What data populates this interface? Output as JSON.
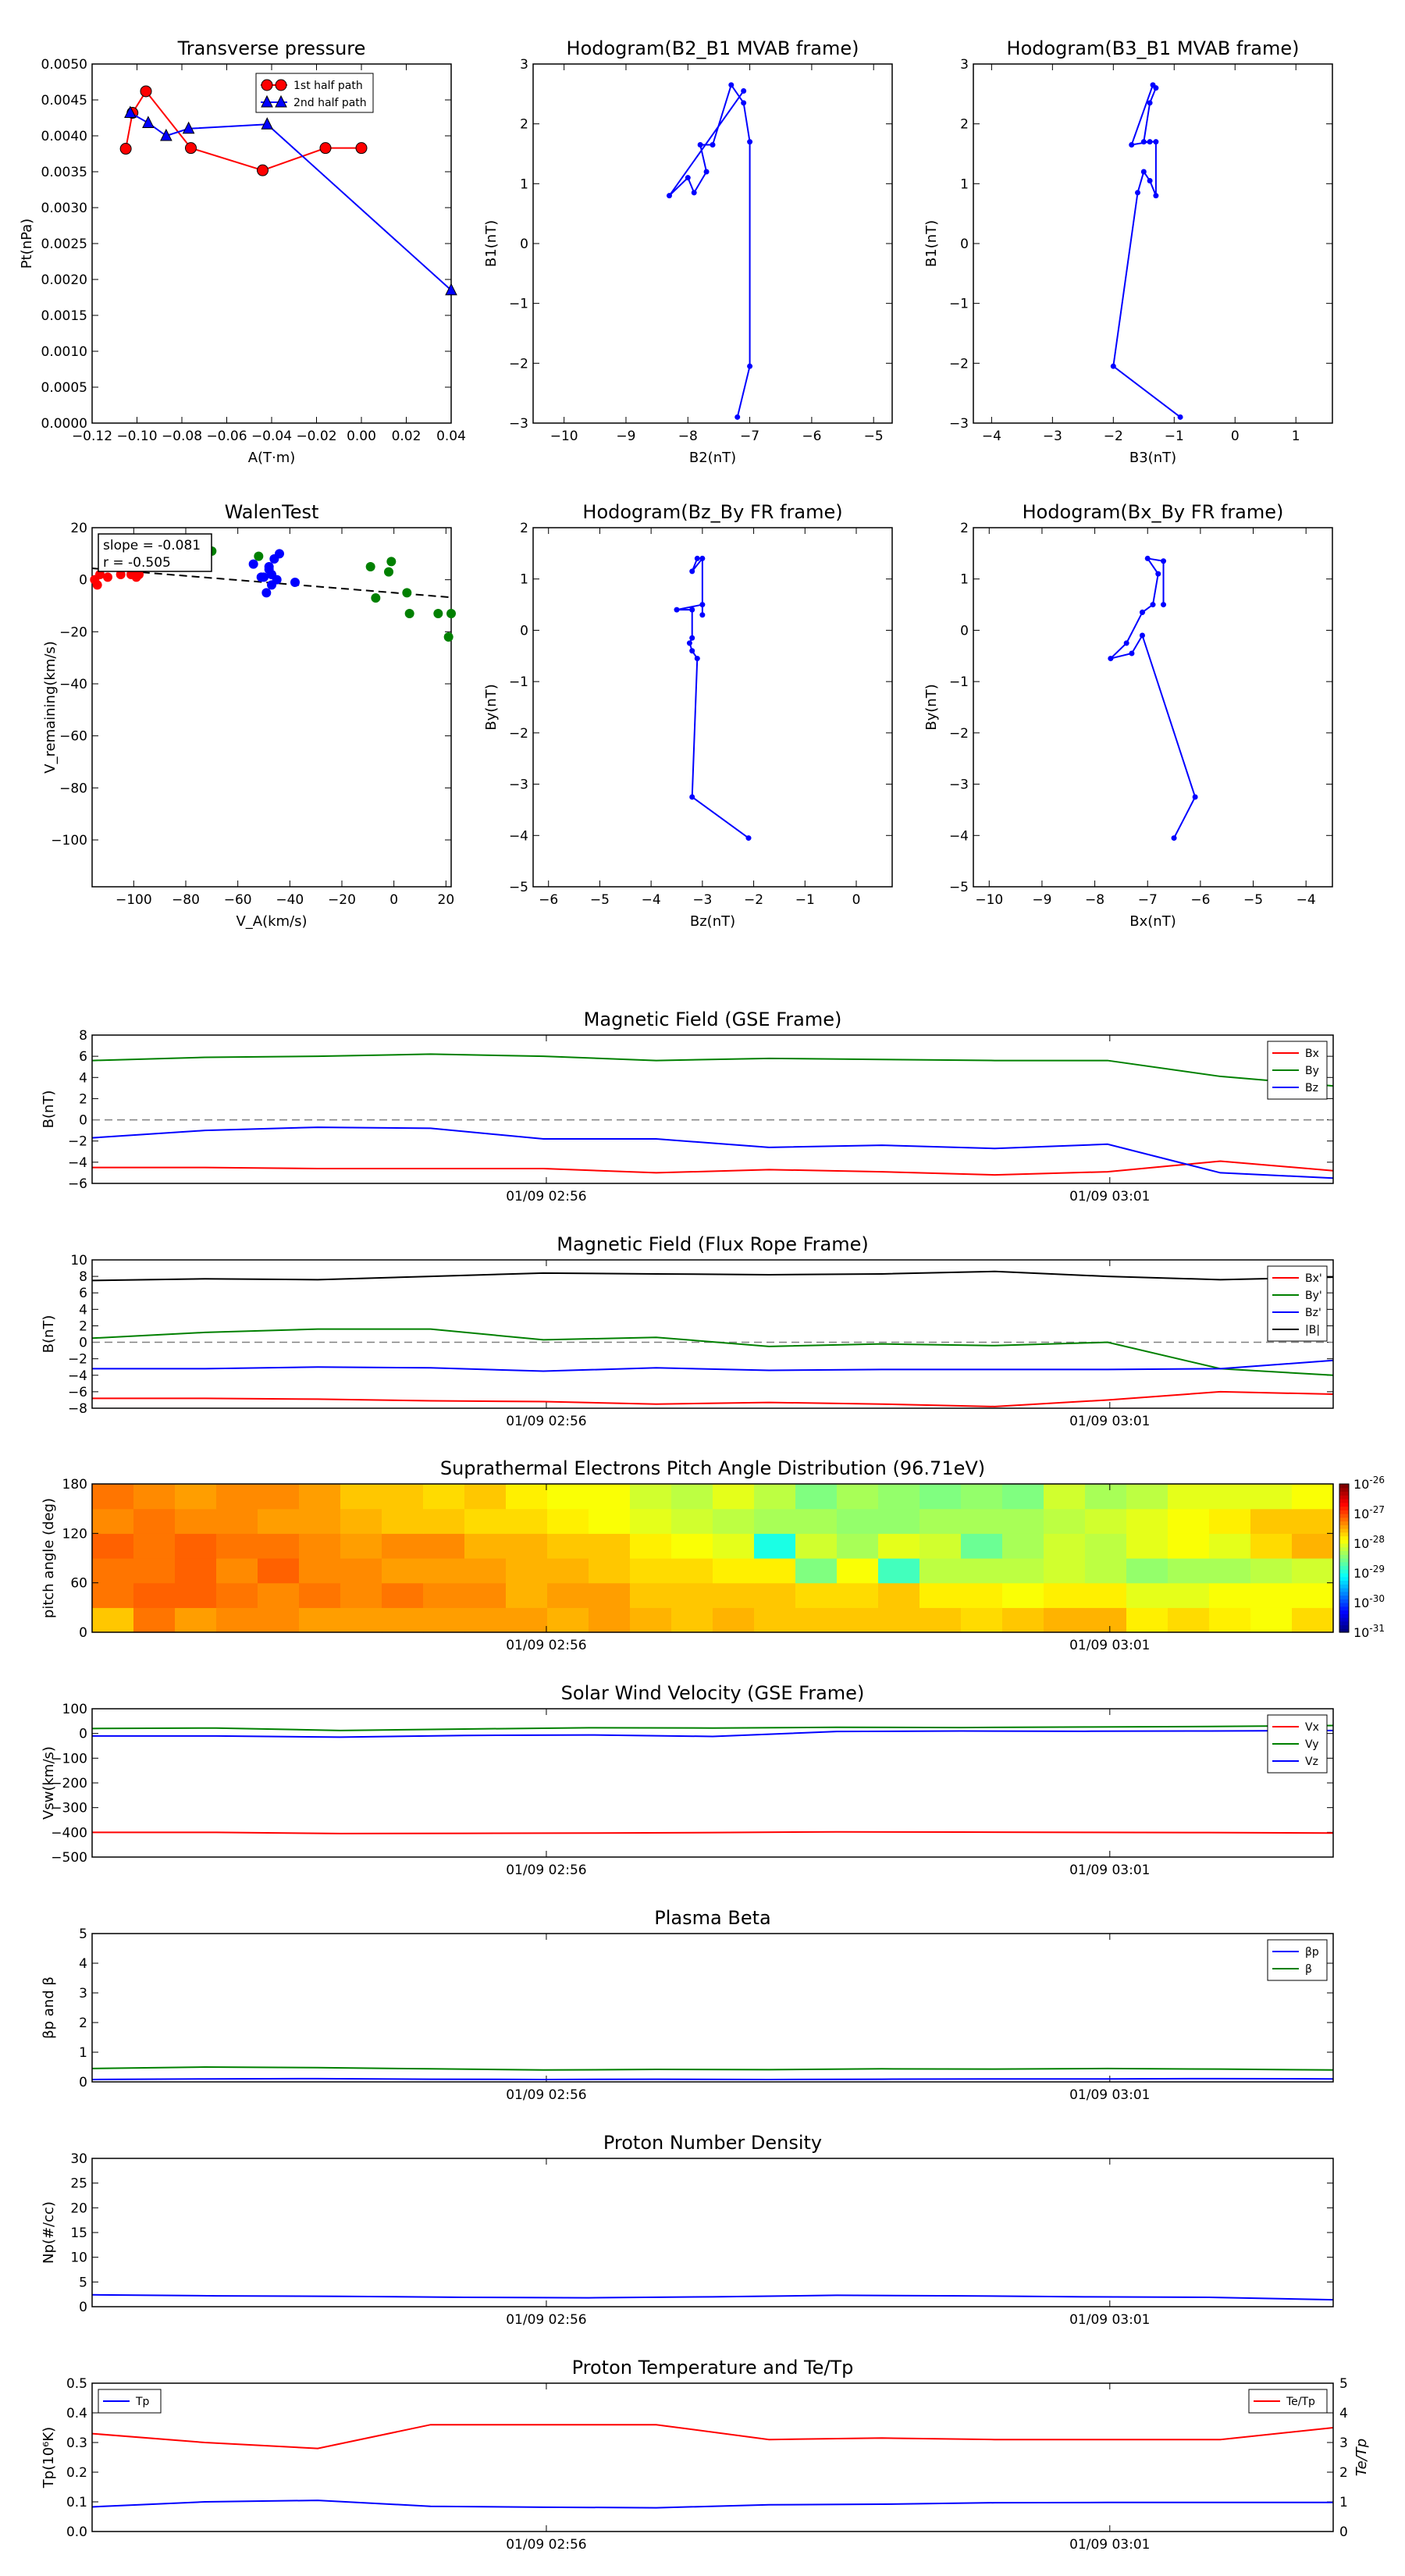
{
  "colors": {
    "red": "#ff0000",
    "green": "#008000",
    "blue": "#0000ff",
    "black": "#000000",
    "dash": "#808080"
  },
  "chart_data": [
    {
      "id": "tp",
      "type": "line",
      "title": "Transverse pressure",
      "xlabel": "A(T·m)",
      "ylabel": "Pt(nPa)",
      "xlim": [
        -0.12,
        0.04
      ],
      "ylim": [
        0.0,
        0.005
      ],
      "xticks": [
        "−0.12",
        "−0.10",
        "−0.08",
        "−0.06",
        "−0.04",
        "−0.02",
        "0.00",
        "0.02",
        "0.04"
      ],
      "yticks": [
        "0.0000",
        "0.0005",
        "0.0010",
        "0.0015",
        "0.0020",
        "0.0025",
        "0.0030",
        "0.0035",
        "0.0040",
        "0.0045",
        "0.0050"
      ],
      "legend": {
        "position": "top-center"
      },
      "series": [
        {
          "name": "1st half path",
          "color": "red",
          "marker": "circle",
          "x": [
            0.0,
            -0.016,
            -0.044,
            -0.076,
            -0.096,
            -0.102,
            -0.105
          ],
          "y": [
            0.00383,
            0.00383,
            0.00352,
            0.00383,
            0.00462,
            0.00432,
            0.00382
          ]
        },
        {
          "name": "2nd half path",
          "color": "blue",
          "marker": "triangle",
          "x": [
            -0.103,
            -0.095,
            -0.087,
            -0.077,
            -0.042,
            0.04
          ],
          "y": [
            0.00432,
            0.00418,
            0.004,
            0.0041,
            0.00416,
            0.00185
          ]
        }
      ]
    },
    {
      "id": "h1",
      "type": "line",
      "title": "Hodogram(B2_B1 MVAB frame)",
      "xlabel": "B2(nT)",
      "ylabel": "B1(nT)",
      "xlim": [
        -10.5,
        -4.7
      ],
      "ylim": [
        -3,
        3
      ],
      "xticks": [
        "−10",
        "−9",
        "−8",
        "−7",
        "−6",
        "−5"
      ],
      "yticks": [
        "−3",
        "−2",
        "−1",
        "0",
        "1",
        "2",
        "3"
      ],
      "series": [
        {
          "color": "blue",
          "marker": "dot",
          "x": [
            -7.2,
            -7.0,
            -7.0,
            -7.1,
            -7.3,
            -7.6,
            -7.8,
            -7.7,
            -7.9,
            -8.0,
            -8.3,
            -7.1
          ],
          "y": [
            -2.9,
            -2.05,
            1.7,
            2.35,
            2.65,
            1.65,
            1.65,
            1.2,
            0.85,
            1.1,
            0.8,
            2.55
          ]
        }
      ]
    },
    {
      "id": "h2",
      "type": "line",
      "title": "Hodogram(B3_B1 MVAB frame)",
      "xlabel": "B3(nT)",
      "ylabel": "B1(nT)",
      "xlim": [
        -4.3,
        1.6
      ],
      "ylim": [
        -3,
        3
      ],
      "xticks": [
        "−4",
        "−3",
        "−2",
        "−1",
        "0",
        "1"
      ],
      "yticks": [
        "−3",
        "−2",
        "−1",
        "0",
        "1",
        "2",
        "3"
      ],
      "series": [
        {
          "color": "blue",
          "marker": "dot",
          "x": [
            -0.9,
            -2.0,
            -1.6,
            -1.5,
            -1.4,
            -1.3,
            -1.3,
            -1.5,
            -1.4,
            -1.3,
            -1.35,
            -1.7,
            -1.4
          ],
          "y": [
            -2.9,
            -2.05,
            0.85,
            1.2,
            1.05,
            0.8,
            1.7,
            1.7,
            2.35,
            2.6,
            2.65,
            1.65,
            1.7
          ]
        }
      ]
    },
    {
      "id": "walen",
      "type": "scatter",
      "title": "WalenTest",
      "xlabel": "V_A(km/s)",
      "ylabel": "V_remaining(km/s)",
      "xlim": [
        -116,
        22
      ],
      "ylim": [
        -118,
        20
      ],
      "xticks": [
        "−100",
        "−80",
        "−60",
        "−40",
        "−20",
        "0",
        "20"
      ],
      "yticks": [
        "−100",
        "−80",
        "−60",
        "−40",
        "−20",
        "0",
        "20"
      ],
      "annotation": [
        "slope = -0.081",
        "r = -0.505"
      ],
      "fit": {
        "slope": -0.081,
        "intercept": -5.0
      },
      "series": [
        {
          "color": "red",
          "x": [
            -115,
            -114,
            -113,
            -110,
            -105,
            -101,
            -100,
            -98,
            -99
          ],
          "y": [
            0,
            -2,
            2,
            1,
            2,
            2,
            3,
            2,
            1
          ]
        },
        {
          "color": "blue",
          "x": [
            -54,
            -51,
            -48,
            -47,
            -46,
            -45,
            -44,
            -47,
            -49,
            -50,
            -48,
            -38
          ],
          "y": [
            6,
            1,
            4,
            2,
            8,
            0,
            10,
            -2,
            -5,
            1,
            5,
            -1
          ]
        },
        {
          "color": "green",
          "x": [
            -70,
            -52,
            -9,
            -2,
            -1,
            -7,
            5,
            6,
            17,
            21,
            22
          ],
          "y": [
            11,
            9,
            5,
            3,
            7,
            -7,
            -5,
            -13,
            -13,
            -22,
            -13
          ]
        }
      ]
    },
    {
      "id": "h3",
      "type": "line",
      "title": "Hodogram(Bz_By FR frame)",
      "xlabel": "Bz(nT)",
      "ylabel": "By(nT)",
      "xlim": [
        -6.3,
        0.7
      ],
      "ylim": [
        -5,
        2
      ],
      "xticks": [
        "−6",
        "−5",
        "−4",
        "−3",
        "−2",
        "−1",
        "0"
      ],
      "yticks": [
        "−5",
        "−4",
        "−3",
        "−2",
        "−1",
        "0",
        "1",
        "2"
      ],
      "series": [
        {
          "color": "blue",
          "marker": "dot",
          "x": [
            -2.1,
            -3.2,
            -3.1,
            -3.2,
            -3.25,
            -3.2,
            -3.2,
            -3.5,
            -3.0,
            -3.0,
            -3.0,
            -3.2,
            -3.1
          ],
          "y": [
            -4.05,
            -3.25,
            -0.55,
            -0.4,
            -0.25,
            -0.15,
            0.4,
            0.4,
            0.5,
            0.3,
            1.4,
            1.15,
            1.4
          ]
        }
      ]
    },
    {
      "id": "h4",
      "type": "line",
      "title": "Hodogram(Bx_By FR frame)",
      "xlabel": "Bx(nT)",
      "ylabel": "By(nT)",
      "xlim": [
        -10.3,
        -3.5
      ],
      "ylim": [
        -5,
        2
      ],
      "xticks": [
        "−10",
        "−9",
        "−8",
        "−7",
        "−6",
        "−5",
        "−4"
      ],
      "yticks": [
        "−5",
        "−4",
        "−3",
        "−2",
        "−1",
        "0",
        "1",
        "2"
      ],
      "series": [
        {
          "color": "blue",
          "marker": "dot",
          "x": [
            -6.5,
            -6.1,
            -7.1,
            -7.3,
            -7.7,
            -7.4,
            -7.1,
            -7.1,
            -6.9,
            -6.8,
            -7.0,
            -6.7,
            -6.7
          ],
          "y": [
            -4.05,
            -3.25,
            -0.1,
            -0.45,
            -0.55,
            -0.25,
            0.35,
            0.35,
            0.5,
            1.1,
            1.4,
            1.35,
            0.5
          ]
        }
      ]
    },
    {
      "id": "mag_gse",
      "type": "line",
      "title": "Magnetic Field (GSE Frame)",
      "ylabel": "B(nT)",
      "ylim": [
        -6,
        8
      ],
      "zero_line": true,
      "yticks": [
        "−6",
        "−4",
        "−2",
        "0",
        "2",
        "4",
        "6",
        "8"
      ],
      "time_ticks": [
        "01/09 02:56",
        "01/09 03:01"
      ],
      "legend": {
        "position": "right"
      },
      "series": [
        {
          "name": "Bx",
          "color": "red",
          "values": [
            -4.5,
            -4.5,
            -4.6,
            -4.6,
            -4.6,
            -5.0,
            -4.7,
            -4.9,
            -5.2,
            -4.9,
            -3.9,
            -4.8
          ]
        },
        {
          "name": "By",
          "color": "green",
          "values": [
            5.6,
            5.9,
            6.0,
            6.2,
            6.0,
            5.6,
            5.8,
            5.7,
            5.6,
            5.6,
            4.1,
            3.2
          ]
        },
        {
          "name": "Bz",
          "color": "blue",
          "values": [
            -1.7,
            -1.0,
            -0.7,
            -0.8,
            -1.8,
            -1.8,
            -2.6,
            -2.4,
            -2.7,
            -2.3,
            -5.0,
            -5.5
          ]
        }
      ]
    },
    {
      "id": "mag_fr",
      "type": "line",
      "title": "Magnetic Field (Flux Rope Frame)",
      "ylabel": "B(nT)",
      "ylim": [
        -8,
        10
      ],
      "zero_line": true,
      "yticks": [
        "−8",
        "−6",
        "−4",
        "−2",
        "0",
        "2",
        "4",
        "6",
        "8",
        "10"
      ],
      "time_ticks": [
        "01/09 02:56",
        "01/09 03:01"
      ],
      "legend": {
        "position": "right"
      },
      "series": [
        {
          "name": "Bx'",
          "color": "red",
          "values": [
            -6.8,
            -6.8,
            -6.9,
            -7.1,
            -7.2,
            -7.5,
            -7.3,
            -7.5,
            -7.8,
            -7.0,
            -6.0,
            -6.3
          ]
        },
        {
          "name": "By'",
          "color": "green",
          "values": [
            0.5,
            1.2,
            1.6,
            1.6,
            0.3,
            0.6,
            -0.5,
            -0.2,
            -0.4,
            0.0,
            -3.2,
            -4.0
          ]
        },
        {
          "name": "Bz'",
          "color": "blue",
          "values": [
            -3.2,
            -3.2,
            -3.0,
            -3.1,
            -3.5,
            -3.1,
            -3.4,
            -3.3,
            -3.3,
            -3.3,
            -3.2,
            -2.2
          ]
        },
        {
          "name": "|B|",
          "color": "black",
          "values": [
            7.5,
            7.7,
            7.6,
            8.0,
            8.4,
            8.3,
            8.2,
            8.3,
            8.6,
            8.0,
            7.6,
            7.9
          ]
        }
      ]
    },
    {
      "id": "pad",
      "type": "heatmap",
      "title": "Suprathermal Electrons Pitch Angle Distribution (96.71eV)",
      "ylabel": "pitch angle (deg)",
      "ylim": [
        0,
        180
      ],
      "yticks": [
        "0",
        "60",
        "120",
        "180"
      ],
      "time_ticks": [
        "01/09 02:56",
        "01/09 03:01"
      ],
      "colorbar": {
        "min_exp": -31,
        "max_exp": -26,
        "ticks": [
          "-31",
          "-30",
          "-29",
          "-28",
          "-27",
          "-26"
        ]
      },
      "values": [
        [
          -27.6,
          -27.2,
          -27.4,
          -27.3,
          -27.3,
          -27.4,
          -27.4,
          -27.4,
          -27.4,
          -27.4,
          -27.4,
          -27.5,
          -27.4,
          -27.5,
          -27.6,
          -27.5,
          -27.6,
          -27.6,
          -27.6,
          -27.6,
          -27.6,
          -27.7,
          -27.6,
          -27.5,
          -27.5,
          -27.8,
          -27.7,
          -27.8,
          -27.9,
          -27.7
        ],
        [
          -27.2,
          -27.1,
          -27.1,
          -27.2,
          -27.3,
          -27.2,
          -27.3,
          -27.2,
          -27.3,
          -27.3,
          -27.5,
          -27.4,
          -27.4,
          -27.6,
          -27.6,
          -27.6,
          -27.6,
          -27.7,
          -27.7,
          -27.6,
          -27.8,
          -27.8,
          -27.9,
          -27.8,
          -27.8,
          -28.0,
          -28.0,
          -27.9,
          -27.9,
          -27.9
        ],
        [
          -27.2,
          -27.2,
          -27.1,
          -27.3,
          -27.1,
          -27.3,
          -27.3,
          -27.4,
          -27.4,
          -27.4,
          -27.5,
          -27.5,
          -27.6,
          -27.7,
          -27.7,
          -27.8,
          -27.8,
          -28.5,
          -27.9,
          -28.8,
          -28.2,
          -28.2,
          -28.2,
          -28.1,
          -28.2,
          -28.4,
          -28.3,
          -28.3,
          -28.2,
          -28.1
        ],
        [
          -27.1,
          -27.2,
          -27.1,
          -27.2,
          -27.2,
          -27.3,
          -27.4,
          -27.3,
          -27.3,
          -27.5,
          -27.5,
          -27.6,
          -27.6,
          -27.8,
          -27.9,
          -28.0,
          -29.0,
          -28.1,
          -28.3,
          -28.0,
          -28.1,
          -28.6,
          -28.3,
          -28.1,
          -28.2,
          -28.0,
          -27.9,
          -28.0,
          -27.7,
          -27.5
        ],
        [
          -27.3,
          -27.2,
          -27.3,
          -27.3,
          -27.4,
          -27.4,
          -27.5,
          -27.6,
          -27.6,
          -27.7,
          -27.7,
          -27.8,
          -27.9,
          -28.0,
          -28.1,
          -28.2,
          -28.3,
          -28.3,
          -28.4,
          -28.4,
          -28.3,
          -28.3,
          -28.3,
          -28.2,
          -28.1,
          -28.0,
          -27.9,
          -27.8,
          -27.6,
          -27.6
        ],
        [
          -27.2,
          -27.3,
          -27.4,
          -27.3,
          -27.3,
          -27.4,
          -27.6,
          -27.6,
          -27.7,
          -27.6,
          -27.8,
          -27.9,
          -27.9,
          -28.1,
          -28.2,
          -28.0,
          -28.2,
          -28.5,
          -28.3,
          -28.4,
          -28.5,
          -28.4,
          -28.5,
          -28.1,
          -28.3,
          -28.2,
          -28.0,
          -28.0,
          -28.0,
          -27.9
        ]
      ]
    },
    {
      "id": "vsw",
      "type": "line",
      "title": "Solar Wind Velocity (GSE Frame)",
      "ylabel": "Vsw(km/s)",
      "ylim": [
        -500,
        100
      ],
      "yticks": [
        "−500",
        "−400",
        "−300",
        "−200",
        "−100",
        "0",
        "100"
      ],
      "time_ticks": [
        "01/09 02:56",
        "01/09 03:01"
      ],
      "legend": {
        "position": "right"
      },
      "series": [
        {
          "name": "Vx",
          "color": "red",
          "values": [
            -400,
            -400,
            -405,
            -404,
            -403,
            -401,
            -398,
            -399,
            -400,
            -401,
            -403
          ]
        },
        {
          "name": "Vy",
          "color": "green",
          "values": [
            20,
            22,
            12,
            18,
            23,
            22,
            25,
            24,
            26,
            28,
            32
          ]
        },
        {
          "name": "Vz",
          "color": "blue",
          "values": [
            -10,
            -10,
            -15,
            -8,
            -6,
            -12,
            8,
            10,
            9,
            10,
            12
          ]
        }
      ]
    },
    {
      "id": "beta",
      "type": "line",
      "title": "Plasma Beta",
      "ylabel": "βp and β",
      "ylim": [
        0,
        5
      ],
      "yticks": [
        "0",
        "1",
        "2",
        "3",
        "4",
        "5"
      ],
      "time_ticks": [
        "01/09 02:56",
        "01/09 03:01"
      ],
      "legend": {
        "position": "top-right"
      },
      "series": [
        {
          "name": "βp",
          "color": "blue",
          "values": [
            0.08,
            0.1,
            0.11,
            0.09,
            0.08,
            0.09,
            0.08,
            0.09,
            0.1,
            0.1,
            0.11,
            0.1
          ]
        },
        {
          "name": "β",
          "color": "green",
          "values": [
            0.45,
            0.5,
            0.48,
            0.44,
            0.4,
            0.42,
            0.41,
            0.44,
            0.43,
            0.45,
            0.43,
            0.4
          ]
        }
      ]
    },
    {
      "id": "np",
      "type": "line",
      "title": "Proton Number Density",
      "ylabel": "Np(#/cc)",
      "ylim": [
        0,
        30
      ],
      "yticks": [
        "0",
        "5",
        "10",
        "15",
        "20",
        "25",
        "30"
      ],
      "time_ticks": [
        "01/09 02:56",
        "01/09 03:01"
      ],
      "series": [
        {
          "color": "blue",
          "values": [
            2.4,
            2.2,
            2.1,
            1.9,
            1.8,
            2.0,
            2.3,
            2.2,
            2.0,
            1.9,
            1.4
          ]
        }
      ]
    },
    {
      "id": "tp2",
      "type": "line",
      "title": "Proton Temperature and Te/Tp",
      "ylabel": "Tp(10⁶K)",
      "y2label": "Te/Tp",
      "ylim": [
        0,
        0.5
      ],
      "y2lim": [
        0,
        5
      ],
      "yticks": [
        "0.0",
        "0.1",
        "0.2",
        "0.3",
        "0.4",
        "0.5"
      ],
      "y2ticks": [
        "0",
        "1",
        "2",
        "3",
        "4",
        "5"
      ],
      "time_ticks": [
        "01/09 02:56",
        "01/09 03:01"
      ],
      "series": [
        {
          "name": "Tp",
          "color": "blue",
          "axis": "left",
          "values": [
            0.083,
            0.1,
            0.105,
            0.085,
            0.082,
            0.08,
            0.09,
            0.092,
            0.097,
            0.098,
            0.098,
            0.098
          ]
        },
        {
          "name": "Te/Tp",
          "color": "red",
          "axis": "right",
          "values": [
            3.3,
            3.0,
            2.8,
            3.6,
            3.6,
            3.6,
            3.1,
            3.15,
            3.1,
            3.1,
            3.1,
            3.5
          ]
        }
      ]
    }
  ]
}
